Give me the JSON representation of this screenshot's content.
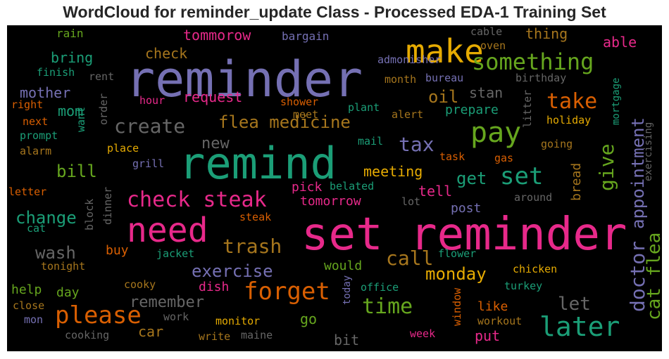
{
  "chart_data": {
    "type": "wordcloud",
    "title": "WordCloud for reminder_update Class - Processed EDA-1 Training Set",
    "background": "#000000",
    "words": [
      {
        "text": "reminder",
        "color": "#7570b3"
      },
      {
        "text": "set reminder",
        "color": "#e7298a"
      },
      {
        "text": "remind",
        "color": "#1b9e77"
      },
      {
        "text": "need",
        "color": "#e7298a"
      },
      {
        "text": "make",
        "color": "#e6ab02"
      },
      {
        "text": "pay",
        "color": "#66a61e"
      },
      {
        "text": "later",
        "color": "#1b9e77"
      },
      {
        "text": "forget",
        "color": "#d95f02"
      },
      {
        "text": "please",
        "color": "#d95f02"
      },
      {
        "text": "check steak",
        "color": "#e7298a"
      },
      {
        "text": "something",
        "color": "#66a61e"
      },
      {
        "text": "set",
        "color": "#1b9e77"
      },
      {
        "text": "take",
        "color": "#d95f02"
      },
      {
        "text": "time",
        "color": "#66a61e"
      },
      {
        "text": "trash",
        "color": "#a6761d"
      },
      {
        "text": "create",
        "color": "#666666"
      },
      {
        "text": "flea medicine",
        "color": "#a6761d"
      },
      {
        "text": "tax",
        "color": "#7570b3"
      },
      {
        "text": "call",
        "color": "#a6761d"
      },
      {
        "text": "give",
        "color": "#66a61e"
      },
      {
        "text": "appointment",
        "color": "#7570b3"
      },
      {
        "text": "doctor",
        "color": "#7570b3"
      },
      {
        "text": "cat flea",
        "color": "#66a61e"
      },
      {
        "text": "exercise",
        "color": "#7570b3"
      },
      {
        "text": "wash",
        "color": "#666666"
      },
      {
        "text": "change",
        "color": "#1b9e77"
      },
      {
        "text": "bill",
        "color": "#66a61e"
      },
      {
        "text": "monday",
        "color": "#e6ab02"
      },
      {
        "text": "let",
        "color": "#666666"
      },
      {
        "text": "remember",
        "color": "#666666"
      },
      {
        "text": "oil",
        "color": "#a6761d"
      },
      {
        "text": "get",
        "color": "#1b9e77"
      },
      {
        "text": "tommorow",
        "color": "#e7298a"
      },
      {
        "text": "meeting",
        "color": "#e6ab02"
      },
      {
        "text": "thing",
        "color": "#a6761d"
      },
      {
        "text": "bring",
        "color": "#1b9e77"
      },
      {
        "text": "request",
        "color": "#e7298a"
      },
      {
        "text": "check",
        "color": "#a6761d"
      },
      {
        "text": "new",
        "color": "#666666"
      },
      {
        "text": "mother",
        "color": "#7570b3"
      },
      {
        "text": "mom",
        "color": "#1b9e77"
      },
      {
        "text": "prepare",
        "color": "#1b9e77"
      },
      {
        "text": "stan",
        "color": "#666666"
      },
      {
        "text": "able",
        "color": "#e7298a"
      },
      {
        "text": "tell",
        "color": "#e7298a"
      },
      {
        "text": "pick",
        "color": "#e7298a"
      },
      {
        "text": "tomorrow",
        "color": "#e7298a"
      },
      {
        "text": "post",
        "color": "#7570b3"
      },
      {
        "text": "bread",
        "color": "#a6761d"
      },
      {
        "text": "would",
        "color": "#66a61e"
      },
      {
        "text": "dish",
        "color": "#e7298a"
      },
      {
        "text": "like",
        "color": "#d95f02"
      },
      {
        "text": "go",
        "color": "#66a61e"
      },
      {
        "text": "car",
        "color": "#a6761d"
      },
      {
        "text": "put",
        "color": "#e7298a"
      },
      {
        "text": "bit",
        "color": "#666666"
      },
      {
        "text": "help",
        "color": "#66a61e"
      },
      {
        "text": "day",
        "color": "#66a61e"
      },
      {
        "text": "buy",
        "color": "#d95f02"
      },
      {
        "text": "rain",
        "color": "#66a61e"
      },
      {
        "text": "bargain",
        "color": "#7570b3"
      },
      {
        "text": "cable",
        "color": "#666666"
      },
      {
        "text": "oven",
        "color": "#a6761d"
      },
      {
        "text": "finish",
        "color": "#1b9e77"
      },
      {
        "text": "rent",
        "color": "#666666"
      },
      {
        "text": "admonisher",
        "color": "#7570b3"
      },
      {
        "text": "month",
        "color": "#a6761d"
      },
      {
        "text": "bureau",
        "color": "#7570b3"
      },
      {
        "text": "birthday",
        "color": "#666666"
      },
      {
        "text": "right",
        "color": "#d95f02"
      },
      {
        "text": "order",
        "color": "#666666"
      },
      {
        "text": "hour",
        "color": "#e7298a"
      },
      {
        "text": "shower",
        "color": "#d95f02"
      },
      {
        "text": "plant",
        "color": "#1b9e77"
      },
      {
        "text": "alert",
        "color": "#a6761d"
      },
      {
        "text": "litter",
        "color": "#666666"
      },
      {
        "text": "mortgage",
        "color": "#1b9e77"
      },
      {
        "text": "next",
        "color": "#d95f02"
      },
      {
        "text": "want",
        "color": "#1b9e77"
      },
      {
        "text": "prompt",
        "color": "#1b9e77"
      },
      {
        "text": "meet",
        "color": "#a6761d"
      },
      {
        "text": "holiday",
        "color": "#e6ab02"
      },
      {
        "text": "exercising",
        "color": "#666666"
      },
      {
        "text": "alarm",
        "color": "#a6761d"
      },
      {
        "text": "place",
        "color": "#e6ab02"
      },
      {
        "text": "mail",
        "color": "#1b9e77"
      },
      {
        "text": "going",
        "color": "#a6761d"
      },
      {
        "text": "task",
        "color": "#d95f02"
      },
      {
        "text": "gas",
        "color": "#d95f02"
      },
      {
        "text": "grill",
        "color": "#7570b3"
      },
      {
        "text": "letter",
        "color": "#d95f02"
      },
      {
        "text": "block",
        "color": "#666666"
      },
      {
        "text": "dinner",
        "color": "#666666"
      },
      {
        "text": "belated",
        "color": "#1b9e77"
      },
      {
        "text": "around",
        "color": "#666666"
      },
      {
        "text": "lot",
        "color": "#666666"
      },
      {
        "text": "cat",
        "color": "#1b9e77"
      },
      {
        "text": "steak",
        "color": "#d95f02"
      },
      {
        "text": "jacket",
        "color": "#1b9e77"
      },
      {
        "text": "flower",
        "color": "#1b9e77"
      },
      {
        "text": "tonight",
        "color": "#a6761d"
      },
      {
        "text": "chicken",
        "color": "#e6ab02"
      },
      {
        "text": "cooky",
        "color": "#a6761d"
      },
      {
        "text": "today",
        "color": "#7570b3"
      },
      {
        "text": "office",
        "color": "#1b9e77"
      },
      {
        "text": "turkey",
        "color": "#1b9e77"
      },
      {
        "text": "close",
        "color": "#a6761d"
      },
      {
        "text": "window",
        "color": "#d95f02"
      },
      {
        "text": "mon",
        "color": "#7570b3"
      },
      {
        "text": "work",
        "color": "#666666"
      },
      {
        "text": "monitor",
        "color": "#e6ab02"
      },
      {
        "text": "workout",
        "color": "#a6761d"
      },
      {
        "text": "cooking",
        "color": "#666666"
      },
      {
        "text": "write",
        "color": "#a6761d"
      },
      {
        "text": "maine",
        "color": "#666666"
      },
      {
        "text": "week",
        "color": "#e7298a"
      }
    ]
  }
}
